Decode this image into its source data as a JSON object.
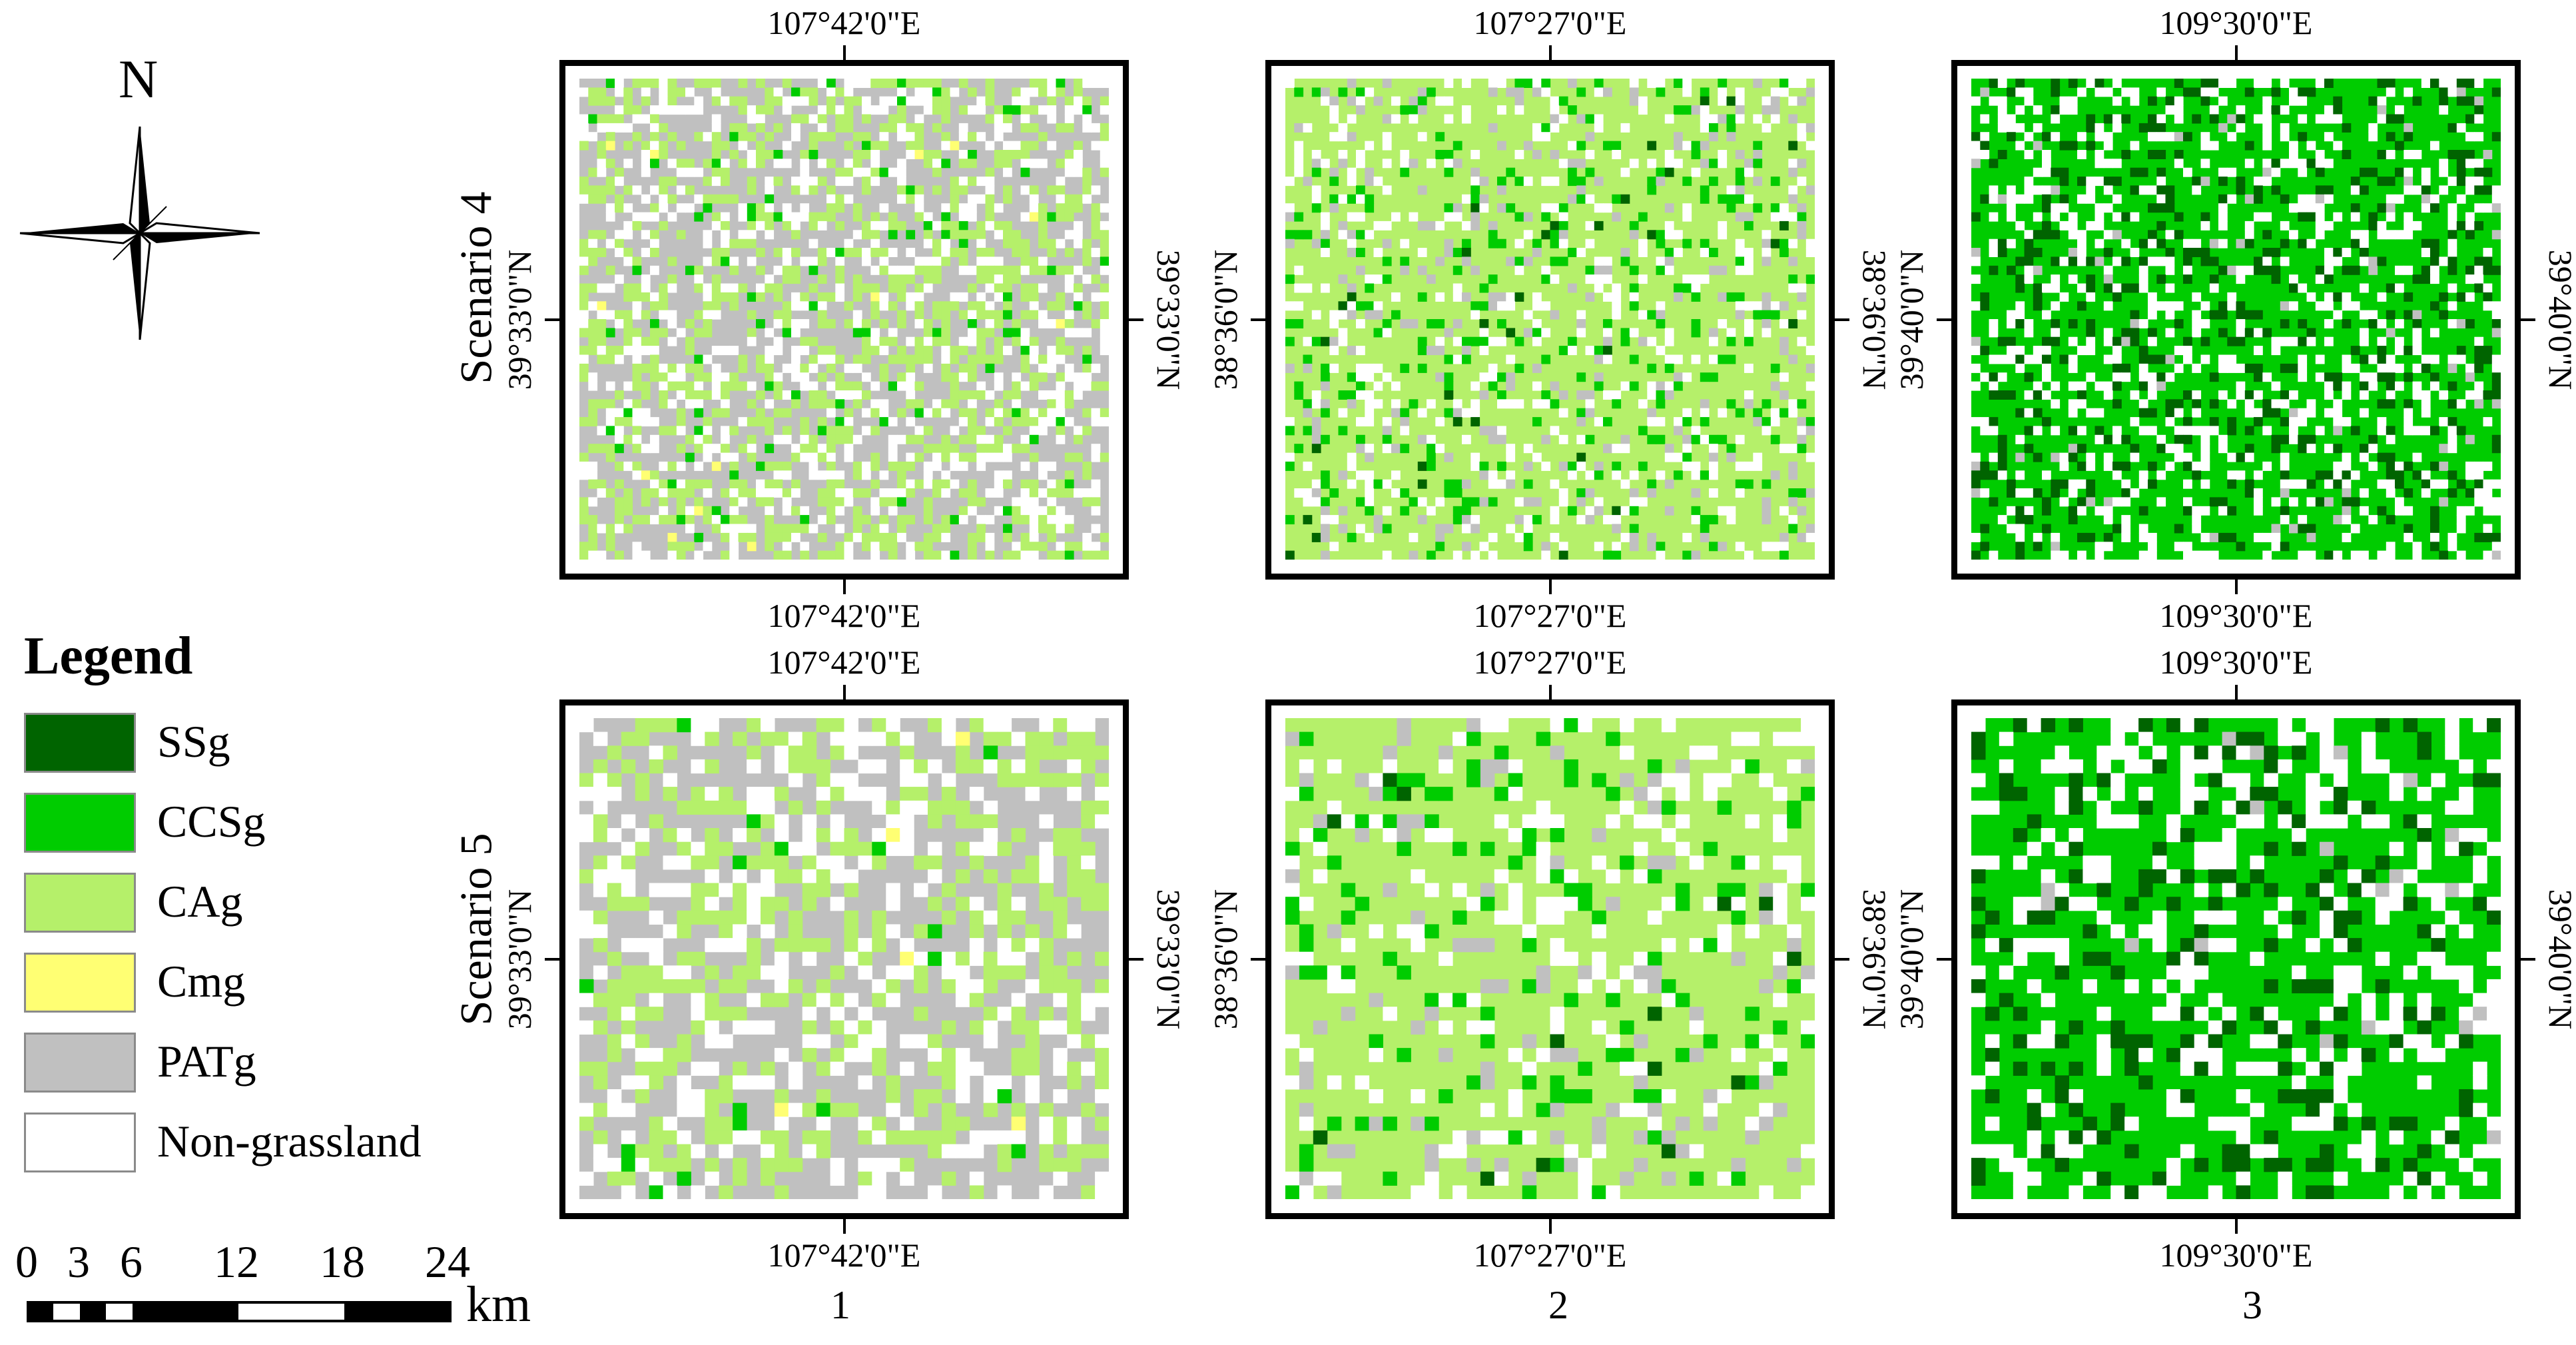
{
  "north_arrow": {
    "letter": "N"
  },
  "legend": {
    "title": "Legend",
    "items": [
      {
        "label": "SSg",
        "color": "#006400"
      },
      {
        "label": "CCSg",
        "color": "#00cc00"
      },
      {
        "label": "CAg",
        "color": "#b5f06a"
      },
      {
        "label": "Cmg",
        "color": "#ffff73"
      },
      {
        "label": "PATg",
        "color": "#c0c0c0"
      },
      {
        "label": "Non-grassland",
        "color": "#ffffff"
      }
    ]
  },
  "scale_bar": {
    "labels": [
      "0",
      "3",
      "6",
      "12",
      "18",
      "24"
    ],
    "unit": "km"
  },
  "scenarios": [
    "Scenario 4",
    "Scenario 5"
  ],
  "columns": [
    "1",
    "2",
    "3"
  ],
  "maps": [
    {
      "top_lon": "107°42'0\"E",
      "bottom_lon": "107°42'0\"E",
      "left_lat": "39°33'0\"N",
      "right_lat": "39°33'0\"N"
    },
    {
      "top_lon": "107°27'0\"E",
      "bottom_lon": "107°27'0\"E",
      "left_lat": "38°36'0\"N",
      "right_lat": "38°36'0\"N"
    },
    {
      "top_lon": "109°30'0\"E",
      "bottom_lon": "109°30'0\"E",
      "left_lat": "39°40'0\"N",
      "right_lat": "39°40'0\"N"
    },
    {
      "top_lon": "107°42'0\"E",
      "bottom_lon": "107°42'0\"E",
      "left_lat": "39°33'0\"N",
      "right_lat": "39°33'0\"N"
    },
    {
      "top_lon": "107°27'0\"E",
      "bottom_lon": "107°27'0\"E",
      "left_lat": "38°36'0\"N",
      "right_lat": "38°36'0\"N"
    },
    {
      "top_lon": "109°30'0\"E",
      "bottom_lon": "109°30'0\"E",
      "left_lat": "39°40'0\"N",
      "right_lat": "39°40'0\"N"
    }
  ]
}
